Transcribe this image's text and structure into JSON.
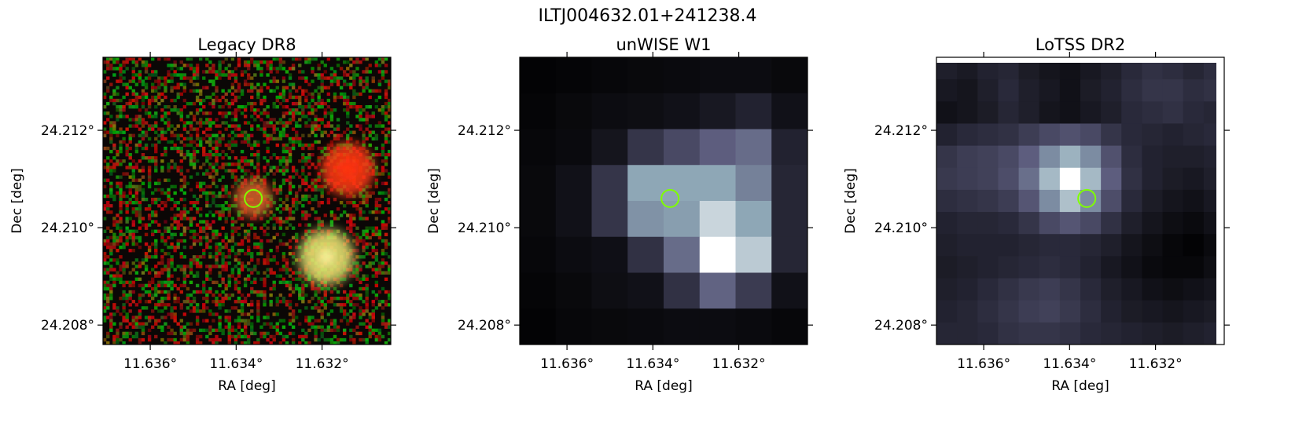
{
  "title": "ILTJ004632.01+241238.4",
  "colors": {
    "marker": "#7fff00",
    "legacy_bg": "#0b0706",
    "legacy_red_source": "#ff3a14",
    "legacy_orange_source": "#d8642a",
    "legacy_yellow_source": "#ffef7a",
    "colormap": [
      "#000000",
      "#2b2b3c",
      "#5d5d7e",
      "#8ea7b6",
      "#ffffff"
    ]
  },
  "chart_data": [
    {
      "type": "heatmap",
      "title": "Legacy DR8",
      "xlabel": "RA [deg]",
      "ylabel": "Dec [deg]",
      "xticks": [
        "11.636°",
        "11.634°",
        "11.632°"
      ],
      "yticks": [
        "24.212°",
        "24.210°",
        "24.208°"
      ],
      "xlim": [
        11.6371,
        11.6304
      ],
      "ylim": [
        24.2076,
        24.2135
      ],
      "marker": {
        "ra": 11.6336,
        "dec": 24.2106
      },
      "sources": [
        {
          "ra": 11.6314,
          "dec": 24.2112,
          "color": "red"
        },
        {
          "ra": 11.6336,
          "dec": 24.2106,
          "color": "orange"
        },
        {
          "ra": 11.6319,
          "dec": 24.2094,
          "color": "yellow"
        }
      ]
    },
    {
      "type": "heatmap",
      "title": "unWISE W1",
      "xlabel": "RA [deg]",
      "ylabel": "Dec [deg]",
      "xticks": [
        "11.636°",
        "11.634°",
        "11.632°"
      ],
      "yticks": [
        "24.212°",
        "24.210°",
        "24.208°"
      ],
      "xlim": [
        11.6371,
        11.6304
      ],
      "ylim": [
        24.2076,
        24.2135
      ],
      "marker": {
        "ra": 11.6336,
        "dec": 24.2106
      },
      "grid_values": [
        [
          0.02,
          0.03,
          0.04,
          0.05,
          0.06,
          0.07,
          0.07,
          0.05
        ],
        [
          0.03,
          0.05,
          0.07,
          0.08,
          0.1,
          0.14,
          0.2,
          0.1
        ],
        [
          0.04,
          0.06,
          0.12,
          0.3,
          0.4,
          0.5,
          0.55,
          0.2
        ],
        [
          0.05,
          0.1,
          0.3,
          0.75,
          0.75,
          0.75,
          0.62,
          0.22
        ],
        [
          0.05,
          0.1,
          0.3,
          0.68,
          0.72,
          0.88,
          0.75,
          0.22
        ],
        [
          0.04,
          0.07,
          0.09,
          0.28,
          0.55,
          1.0,
          0.85,
          0.22
        ],
        [
          0.03,
          0.05,
          0.08,
          0.1,
          0.28,
          0.52,
          0.33,
          0.1
        ],
        [
          0.02,
          0.04,
          0.05,
          0.06,
          0.07,
          0.07,
          0.06,
          0.04
        ]
      ]
    },
    {
      "type": "heatmap",
      "title": "LoTSS DR2",
      "xlabel": "RA [deg]",
      "ylabel": "Dec [deg]",
      "xticks": [
        "11.636°",
        "11.634°",
        "11.632°"
      ],
      "yticks": [
        "24.212°",
        "24.210°",
        "24.208°"
      ],
      "xlim": [
        11.6371,
        11.6304
      ],
      "ylim": [
        24.2076,
        24.2135
      ],
      "marker": {
        "ra": 11.6336,
        "dec": 24.2106
      },
      "grid_values": [
        [
          0.18,
          0.15,
          0.2,
          0.22,
          0.16,
          0.12,
          0.1,
          0.14,
          0.18,
          0.24,
          0.28,
          0.26,
          0.22,
          0.26
        ],
        [
          0.14,
          0.12,
          0.18,
          0.24,
          0.18,
          0.14,
          0.1,
          0.16,
          0.2,
          0.26,
          0.3,
          0.3,
          0.26,
          0.28
        ],
        [
          0.1,
          0.12,
          0.16,
          0.22,
          0.18,
          0.12,
          0.1,
          0.14,
          0.18,
          0.24,
          0.26,
          0.28,
          0.24,
          0.22
        ],
        [
          0.2,
          0.24,
          0.26,
          0.28,
          0.34,
          0.4,
          0.44,
          0.4,
          0.3,
          0.24,
          0.22,
          0.2,
          0.22,
          0.24
        ],
        [
          0.3,
          0.34,
          0.36,
          0.4,
          0.5,
          0.66,
          0.78,
          0.66,
          0.44,
          0.26,
          0.2,
          0.18,
          0.18,
          0.2
        ],
        [
          0.32,
          0.34,
          0.36,
          0.42,
          0.56,
          0.8,
          1.0,
          0.8,
          0.5,
          0.28,
          0.2,
          0.16,
          0.14,
          0.18
        ],
        [
          0.26,
          0.28,
          0.3,
          0.34,
          0.46,
          0.66,
          0.82,
          0.66,
          0.42,
          0.24,
          0.16,
          0.12,
          0.1,
          0.14
        ],
        [
          0.2,
          0.22,
          0.22,
          0.24,
          0.3,
          0.4,
          0.46,
          0.4,
          0.28,
          0.18,
          0.12,
          0.08,
          0.06,
          0.1
        ],
        [
          0.18,
          0.2,
          0.2,
          0.2,
          0.22,
          0.24,
          0.24,
          0.22,
          0.18,
          0.12,
          0.08,
          0.04,
          0.02,
          0.06
        ],
        [
          0.16,
          0.18,
          0.2,
          0.22,
          0.24,
          0.26,
          0.24,
          0.2,
          0.14,
          0.1,
          0.06,
          0.04,
          0.04,
          0.08
        ],
        [
          0.18,
          0.2,
          0.24,
          0.28,
          0.32,
          0.34,
          0.3,
          0.24,
          0.18,
          0.14,
          0.1,
          0.08,
          0.1,
          0.12
        ],
        [
          0.2,
          0.22,
          0.26,
          0.3,
          0.34,
          0.36,
          0.32,
          0.26,
          0.2,
          0.16,
          0.14,
          0.12,
          0.14,
          0.16
        ],
        [
          0.22,
          0.22,
          0.24,
          0.28,
          0.3,
          0.3,
          0.28,
          0.24,
          0.22,
          0.2,
          0.18,
          0.16,
          0.18,
          0.2
        ]
      ]
    }
  ]
}
